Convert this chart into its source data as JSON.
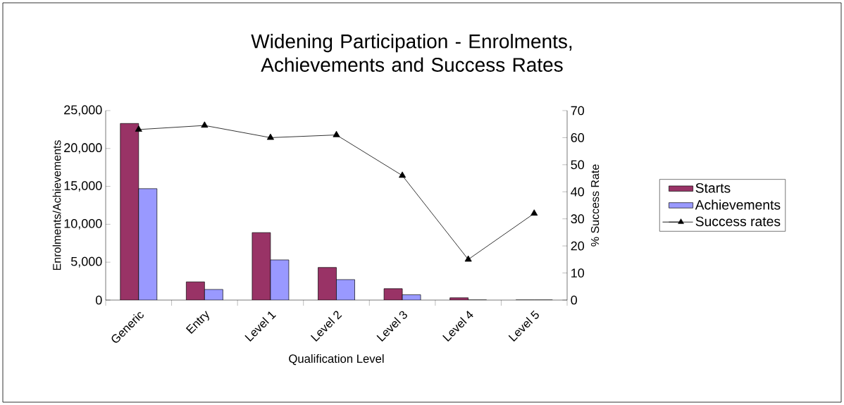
{
  "chart_data": {
    "type": "bar",
    "title": "Widening Participation - Enrolments, Achievements and Success Rates",
    "xlabel": "Qualification Level",
    "ylabel": "Enrolments/Achievements",
    "y2label": "% Success Rate",
    "categories": [
      "Generic",
      "Entry",
      "Level 1",
      "Level 2",
      "Level 3",
      "Level 4",
      "Level 5"
    ],
    "series": [
      {
        "name": "Starts",
        "color": "#993366",
        "values": [
          23300,
          2400,
          8900,
          4300,
          1500,
          300,
          0
        ]
      },
      {
        "name": "Achievements",
        "color": "#9999ff",
        "values": [
          14700,
          1400,
          5300,
          2700,
          700,
          0,
          0
        ]
      },
      {
        "name": "Success rates",
        "type": "line",
        "axis": "y2",
        "color": "#000000",
        "marker": "triangle",
        "values": [
          63,
          64.5,
          60,
          61,
          46,
          15,
          32
        ]
      }
    ],
    "ylim": [
      0,
      25000
    ],
    "yticks": [
      0,
      {
        "value": 5000,
        "label": "5,000"
      },
      {
        "value": 10000,
        "label": "10,000"
      },
      {
        "value": 15000,
        "label": "15,000"
      },
      {
        "value": 20000,
        "label": "20,000"
      },
      {
        "value": 25000,
        "label": "25,000"
      }
    ],
    "y2lim": [
      0,
      70
    ],
    "y2ticks": [
      0,
      10,
      20,
      30,
      40,
      50,
      60,
      70
    ],
    "legend": "right"
  }
}
